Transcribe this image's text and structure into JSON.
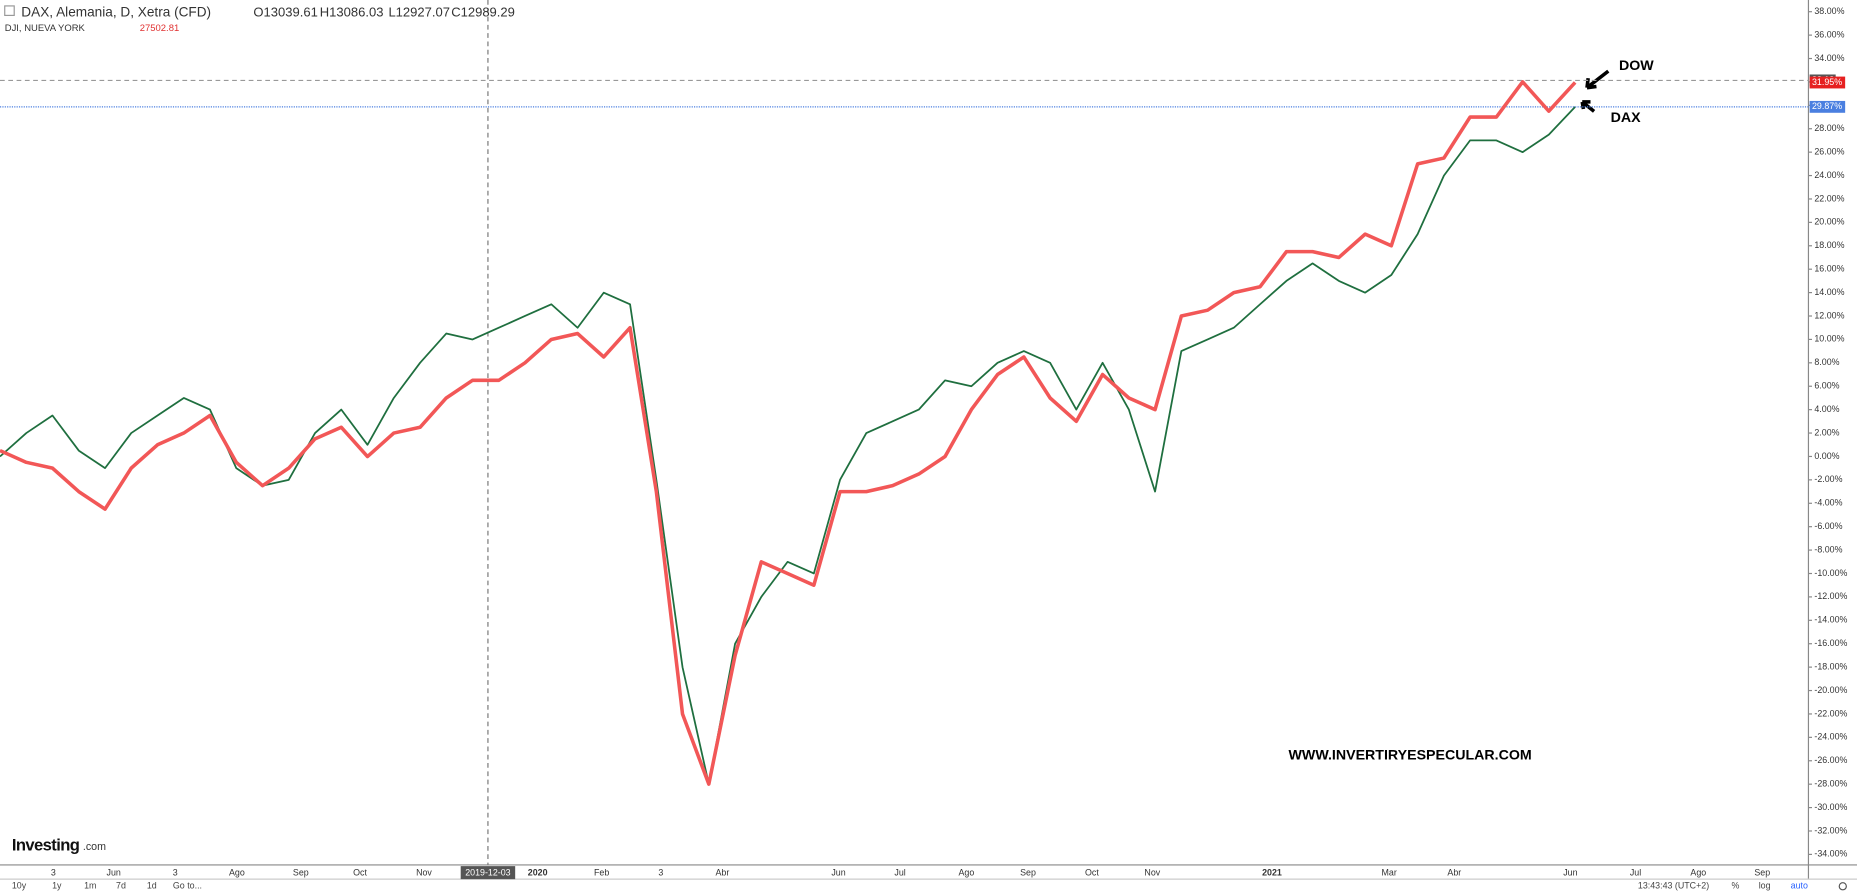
{
  "chart_data": {
    "type": "line",
    "header": {
      "title": "DAX, Alemania, D, Xetra (CFD)",
      "open": "O13039.61",
      "high": "H13086.03",
      "low": "L12927.07",
      "close": "C12989.29",
      "second_symbol": "DJI, NUEVA YORK",
      "second_price": "27502.81"
    },
    "series": [
      {
        "name": "DOW",
        "color": "#f25757",
        "last_label": "31.95%",
        "values": [
          0.5,
          -0.5,
          -1,
          -3,
          -4.5,
          -1,
          1,
          2,
          3.5,
          -0.5,
          -2.5,
          -1,
          1.5,
          2.5,
          0,
          2,
          2.5,
          5,
          6.5,
          6.5,
          8,
          10,
          10.5,
          8.5,
          11,
          -3,
          -22,
          -28,
          -17,
          -9,
          -10,
          -11,
          -3,
          -3,
          -2.5,
          -1.5,
          0,
          4,
          7,
          8.5,
          5,
          3,
          7,
          5,
          4,
          12,
          12.5,
          14,
          14.5,
          17.5,
          17.5,
          17,
          19,
          18,
          25,
          25.5,
          29,
          29,
          32,
          29.5,
          31.95
        ]
      },
      {
        "name": "DAX",
        "color": "#1f6f3f",
        "last_label": "29.87%",
        "values": [
          0,
          2,
          3.5,
          0.5,
          -1,
          2,
          3.5,
          5,
          4,
          -1,
          -2.5,
          -2,
          2,
          4,
          1,
          5,
          8,
          10.5,
          10,
          11,
          12,
          13,
          11,
          14,
          13,
          -2,
          -18,
          -28,
          -16,
          -12,
          -9,
          -10,
          -2,
          2,
          3,
          4,
          6.5,
          6,
          8,
          9,
          8,
          4,
          8,
          4,
          -3,
          9,
          10,
          11,
          13,
          15,
          16.5,
          15,
          14,
          15.5,
          19,
          24,
          27,
          27,
          26,
          27.5,
          29.87
        ]
      }
    ],
    "xtick_labels": [
      "3",
      "Jun",
      "3",
      "Ago",
      "Sep",
      "Oct",
      "Nov",
      "2019-12-03",
      "2020",
      "Feb",
      "3",
      "Abr",
      "Jun",
      "Jul",
      "Ago",
      "Sep",
      "Oct",
      "Nov",
      "2021",
      "Mar",
      "Abr",
      "Jun",
      "Jul",
      "Ago",
      "Sep"
    ],
    "ylim": [
      -34.9,
      39
    ],
    "yticks": [
      {
        "value": -34,
        "label": "-34.00%"
      },
      {
        "value": -32,
        "label": "-32.00%"
      },
      {
        "value": -30,
        "label": "-30.00%"
      },
      {
        "value": -28,
        "label": "-28.00%"
      },
      {
        "value": -26,
        "label": "-26.00%"
      },
      {
        "value": -24,
        "label": "-24.00%"
      },
      {
        "value": -22,
        "label": "-22.00%"
      },
      {
        "value": -20,
        "label": "-20.00%"
      },
      {
        "value": -18,
        "label": "-18.00%"
      },
      {
        "value": -16,
        "label": "-16.00%"
      },
      {
        "value": -14,
        "label": "-14.00%"
      },
      {
        "value": -12,
        "label": "-12.00%"
      },
      {
        "value": -10,
        "label": "-10.00%"
      },
      {
        "value": -8,
        "label": "-8.00%"
      },
      {
        "value": -6,
        "label": "-6.00%"
      },
      {
        "value": -4,
        "label": "-4.00%"
      },
      {
        "value": -2,
        "label": "-2.00%"
      },
      {
        "value": 0,
        "label": "0.00%"
      },
      {
        "value": 2,
        "label": "2.00%"
      },
      {
        "value": 4,
        "label": "4.00%"
      },
      {
        "value": 6,
        "label": "6.00%"
      },
      {
        "value": 8,
        "label": "8.00%"
      },
      {
        "value": 10,
        "label": "10.00%"
      },
      {
        "value": 12,
        "label": "12.00%"
      },
      {
        "value": 14,
        "label": "14.00%"
      },
      {
        "value": 16,
        "label": "16.00%"
      },
      {
        "value": 18,
        "label": "18.00%"
      },
      {
        "value": 20,
        "label": "20.00%"
      },
      {
        "value": 22,
        "label": "22.00%"
      },
      {
        "value": 24,
        "label": "24.00%"
      },
      {
        "value": 26,
        "label": "26.00%"
      },
      {
        "value": 28,
        "label": "28.00%"
      },
      {
        "value": 30,
        "label": "30.00%"
      },
      {
        "value": 32,
        "label": "32.00%"
      },
      {
        "value": 34,
        "label": "34.00%"
      },
      {
        "value": 36,
        "label": "36.00%"
      },
      {
        "value": 38,
        "label": "38.00%"
      }
    ],
    "grid": false,
    "crosshair": {
      "y": 32.13
    },
    "watermark": "WWW.INVERTIRYESPECULAR.COM",
    "brand": "Investing",
    "brand_suffix": ".com",
    "toolbar": {
      "ranges": [
        "10y",
        "1y",
        "1m",
        "7d",
        "1d"
      ],
      "goto": "Go to...",
      "time": "13:43:43 (UTC+2)",
      "options": [
        "%",
        "log",
        "auto"
      ]
    }
  }
}
